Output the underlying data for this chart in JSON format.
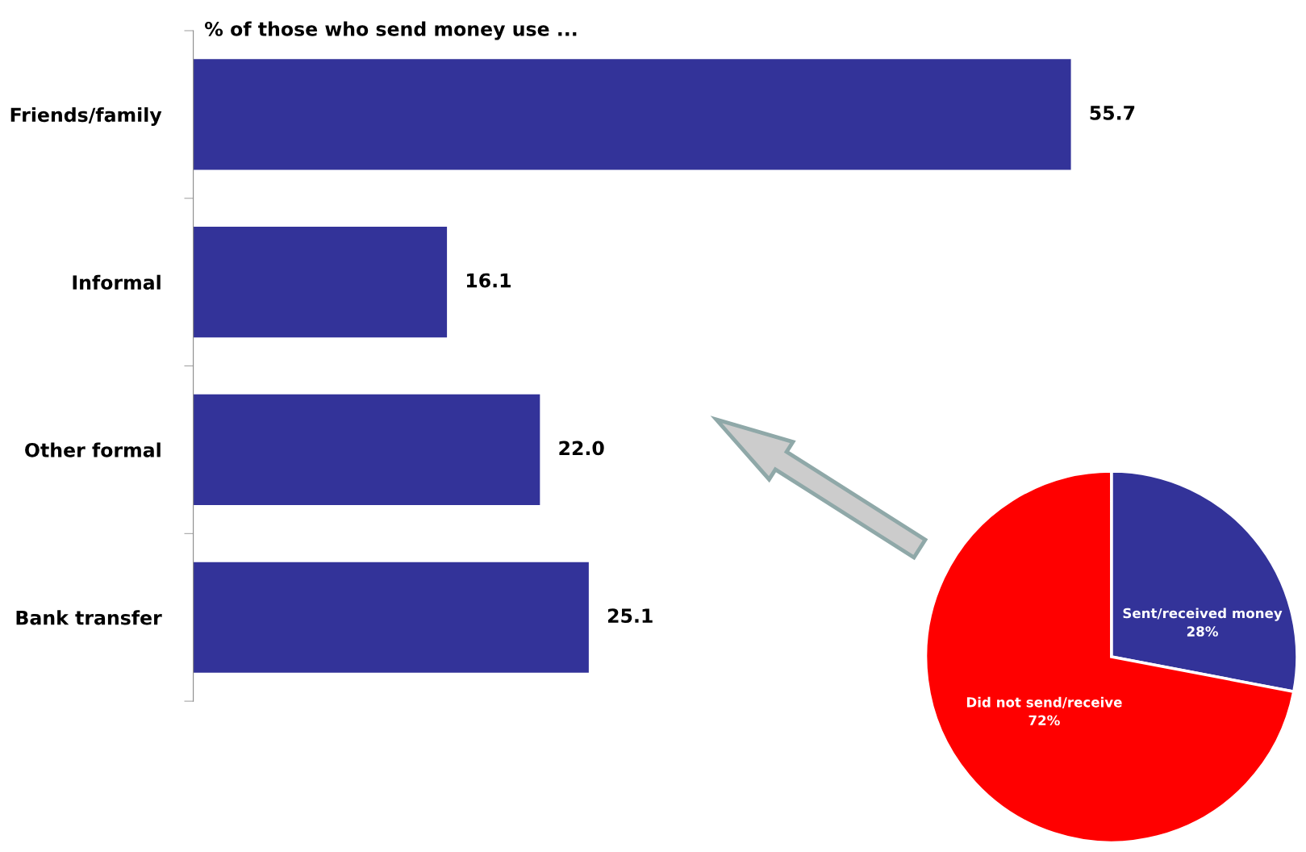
{
  "chart_data": [
    {
      "type": "bar",
      "orientation": "horizontal",
      "title": "% of those who send money use ...",
      "categories": [
        "Friends/family",
        "Informal",
        "Other formal",
        "Bank transfer"
      ],
      "values": [
        55.7,
        16.1,
        22.0,
        25.1
      ],
      "color": "#333399",
      "value_labels": [
        "55.7",
        "16.1",
        "22.0",
        "25.1"
      ]
    },
    {
      "type": "pie",
      "categories": [
        "Sent/received money",
        "Did not send/receive"
      ],
      "values": [
        28,
        72
      ],
      "colors": [
        "#333399",
        "#ff0000"
      ],
      "value_labels": [
        "28%",
        "72%"
      ]
    }
  ]
}
